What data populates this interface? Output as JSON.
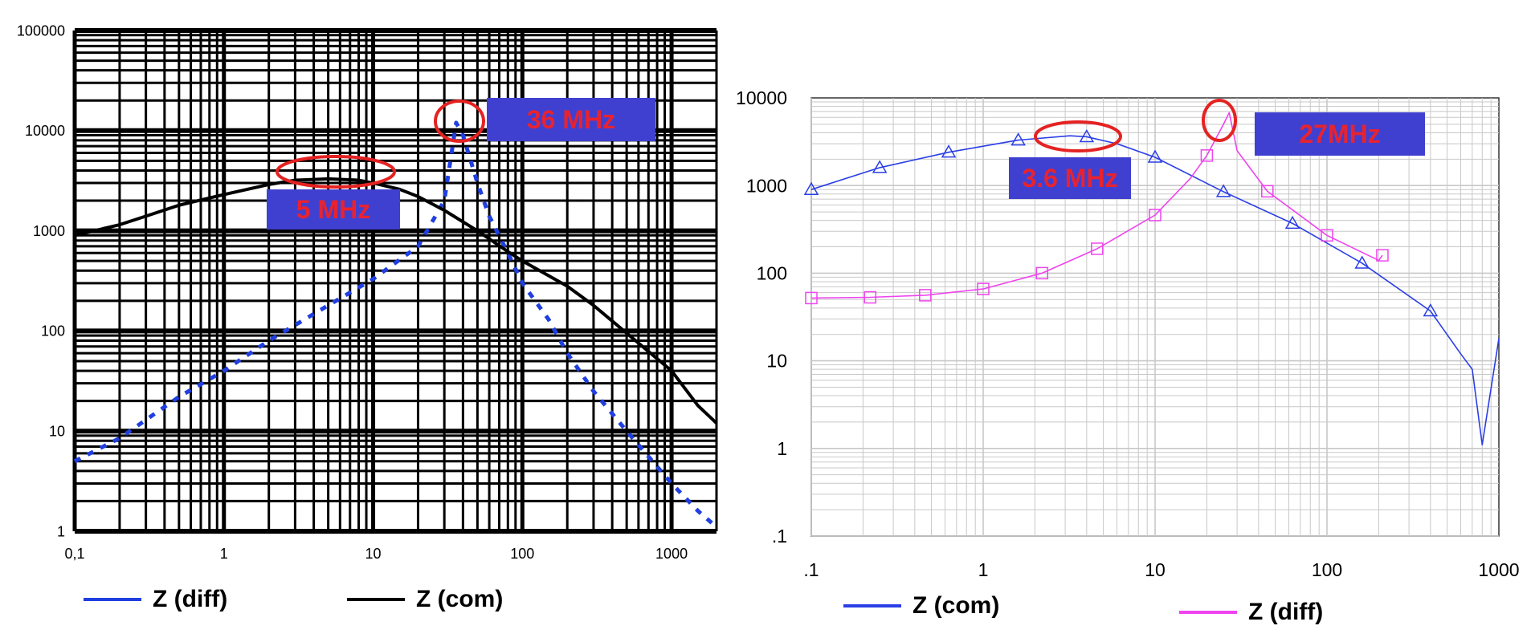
{
  "chart_data": [
    {
      "type": "line",
      "x_scale": "log",
      "y_scale": "log",
      "xlim": [
        0.1,
        2000
      ],
      "ylim": [
        1,
        100000
      ],
      "x_ticks": [
        0.1,
        1,
        10,
        100,
        1000
      ],
      "x_tick_labels": [
        "0,1",
        "1",
        "10",
        "100",
        "1000"
      ],
      "y_ticks": [
        1,
        10,
        100,
        1000,
        10000,
        100000
      ],
      "y_tick_labels": [
        "1",
        "10",
        "100",
        "1000",
        "10000",
        "100000"
      ],
      "grid": true,
      "series": [
        {
          "name": "Z (diff)",
          "color": "#1f3fe0",
          "style": "dotted",
          "x": [
            0.1,
            0.2,
            0.5,
            1,
            2,
            5,
            10,
            20,
            30,
            36,
            40,
            50,
            60,
            80,
            100,
            150,
            200,
            300,
            500,
            1000,
            1500,
            2000
          ],
          "y": [
            5,
            8.5,
            22,
            40,
            80,
            180,
            330,
            700,
            2000,
            12000,
            9000,
            3000,
            1400,
            600,
            300,
            130,
            60,
            25,
            10,
            3,
            1.6,
            1.1
          ]
        },
        {
          "name": "Z (com)",
          "color": "#000000",
          "style": "solid",
          "x": [
            0.1,
            0.2,
            0.3,
            0.5,
            1,
            2,
            3,
            5,
            8,
            10,
            15,
            20,
            30,
            50,
            80,
            100,
            200,
            300,
            500,
            1000,
            1500,
            2000
          ],
          "y": [
            900,
            1150,
            1400,
            1800,
            2300,
            2900,
            3200,
            3300,
            3200,
            3000,
            2600,
            2200,
            1600,
            1000,
            620,
            500,
            280,
            180,
            95,
            40,
            18,
            12
          ]
        }
      ],
      "annotations": [
        "5 MHz",
        "36 MHz"
      ],
      "legend": [
        "Z (diff)",
        "Z (com)"
      ]
    },
    {
      "type": "line",
      "x_scale": "log",
      "y_scale": "log",
      "xlim": [
        0.1,
        1000
      ],
      "ylim": [
        0.1,
        10000
      ],
      "x_ticks": [
        0.1,
        1,
        10,
        100,
        1000
      ],
      "x_tick_labels": [
        ".1",
        "1",
        "10",
        "100",
        "1000"
      ],
      "y_ticks": [
        0.1,
        1,
        10,
        100,
        1000,
        10000
      ],
      "y_tick_labels": [
        ".1",
        "1",
        "10",
        "100",
        "1000",
        "10000"
      ],
      "grid": true,
      "series": [
        {
          "name": "Z (com)",
          "color": "#2a3ee6",
          "marker": "triangle",
          "x": [
            0.1,
            0.25,
            0.63,
            1.6,
            3.2,
            4,
            6,
            10,
            25,
            63,
            160,
            400,
            600,
            700,
            800,
            1000
          ],
          "y": [
            900,
            1600,
            2400,
            3300,
            3700,
            3600,
            3000,
            2100,
            850,
            370,
            130,
            37,
            12,
            8,
            1.1,
            18
          ],
          "marker_x": [
            0.1,
            0.25,
            0.63,
            1.6,
            4,
            10,
            25,
            63,
            160,
            400
          ],
          "marker_y": [
            900,
            1600,
            2400,
            3300,
            3600,
            2100,
            850,
            370,
            130,
            37
          ]
        },
        {
          "name": "Z (diff)",
          "color": "#ee44ee",
          "marker": "square",
          "x": [
            0.1,
            0.22,
            0.46,
            1,
            2.2,
            4.6,
            10,
            16,
            20,
            25,
            27,
            30,
            45,
            100,
            200,
            210
          ],
          "y": [
            52,
            53,
            56,
            66,
            100,
            190,
            460,
            1200,
            2200,
            5000,
            6800,
            2500,
            860,
            270,
            140,
            160
          ],
          "marker_x": [
            0.1,
            0.22,
            0.46,
            1,
            2.2,
            4.6,
            10,
            20,
            45,
            100,
            210
          ],
          "marker_y": [
            52,
            53,
            56,
            66,
            100,
            190,
            460,
            2200,
            860,
            270,
            160
          ]
        }
      ],
      "annotations": [
        "3.6 MHz",
        "27MHz"
      ],
      "legend": [
        "Z (com)",
        "Z (diff)"
      ]
    }
  ]
}
